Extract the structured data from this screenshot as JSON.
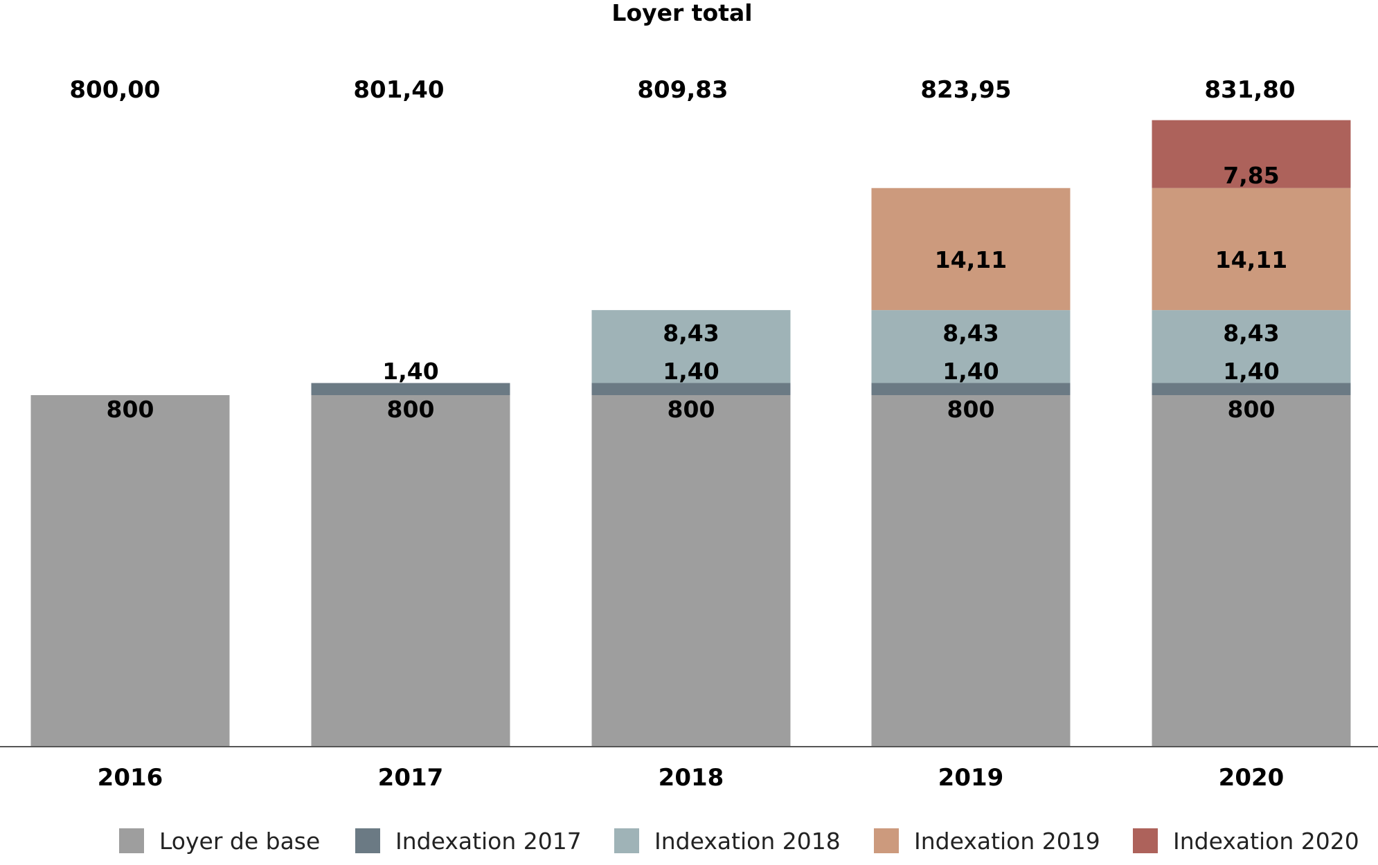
{
  "chart_data": {
    "type": "bar",
    "stacked": true,
    "title": "Loyer total",
    "categories": [
      "2016",
      "2017",
      "2018",
      "2019",
      "2020"
    ],
    "totals": [
      "800,00",
      "801,40",
      "809,83",
      "823,95",
      "831,80"
    ],
    "series": [
      {
        "name": "Loyer de base",
        "color": "#9e9e9e",
        "values": [
          800,
          800,
          800,
          800,
          800
        ],
        "labels": [
          "800",
          "800",
          "800",
          "800",
          "800"
        ]
      },
      {
        "name": "Indexation 2017",
        "color": "#6b7a84",
        "values": [
          0,
          1.4,
          1.4,
          1.4,
          1.4
        ],
        "labels": [
          "",
          "1,40",
          "1,40",
          "1,40",
          "1,40"
        ]
      },
      {
        "name": "Indexation 2018",
        "color": "#9fb3b7",
        "values": [
          0,
          0,
          8.43,
          8.43,
          8.43
        ],
        "labels": [
          "",
          "",
          "8,43",
          "8,43",
          "8,43"
        ]
      },
      {
        "name": "Indexation 2019",
        "color": "#cc9a7d",
        "values": [
          0,
          0,
          0,
          14.11,
          14.11
        ],
        "labels": [
          "",
          "",
          "",
          "14,11",
          "14,11"
        ]
      },
      {
        "name": "Indexation 2020",
        "color": "#ad625b",
        "values": [
          0,
          0,
          0,
          0,
          7.85
        ],
        "labels": [
          "",
          "",
          "",
          "",
          "7,85"
        ]
      }
    ],
    "legend": "bottom",
    "grid": false
  }
}
